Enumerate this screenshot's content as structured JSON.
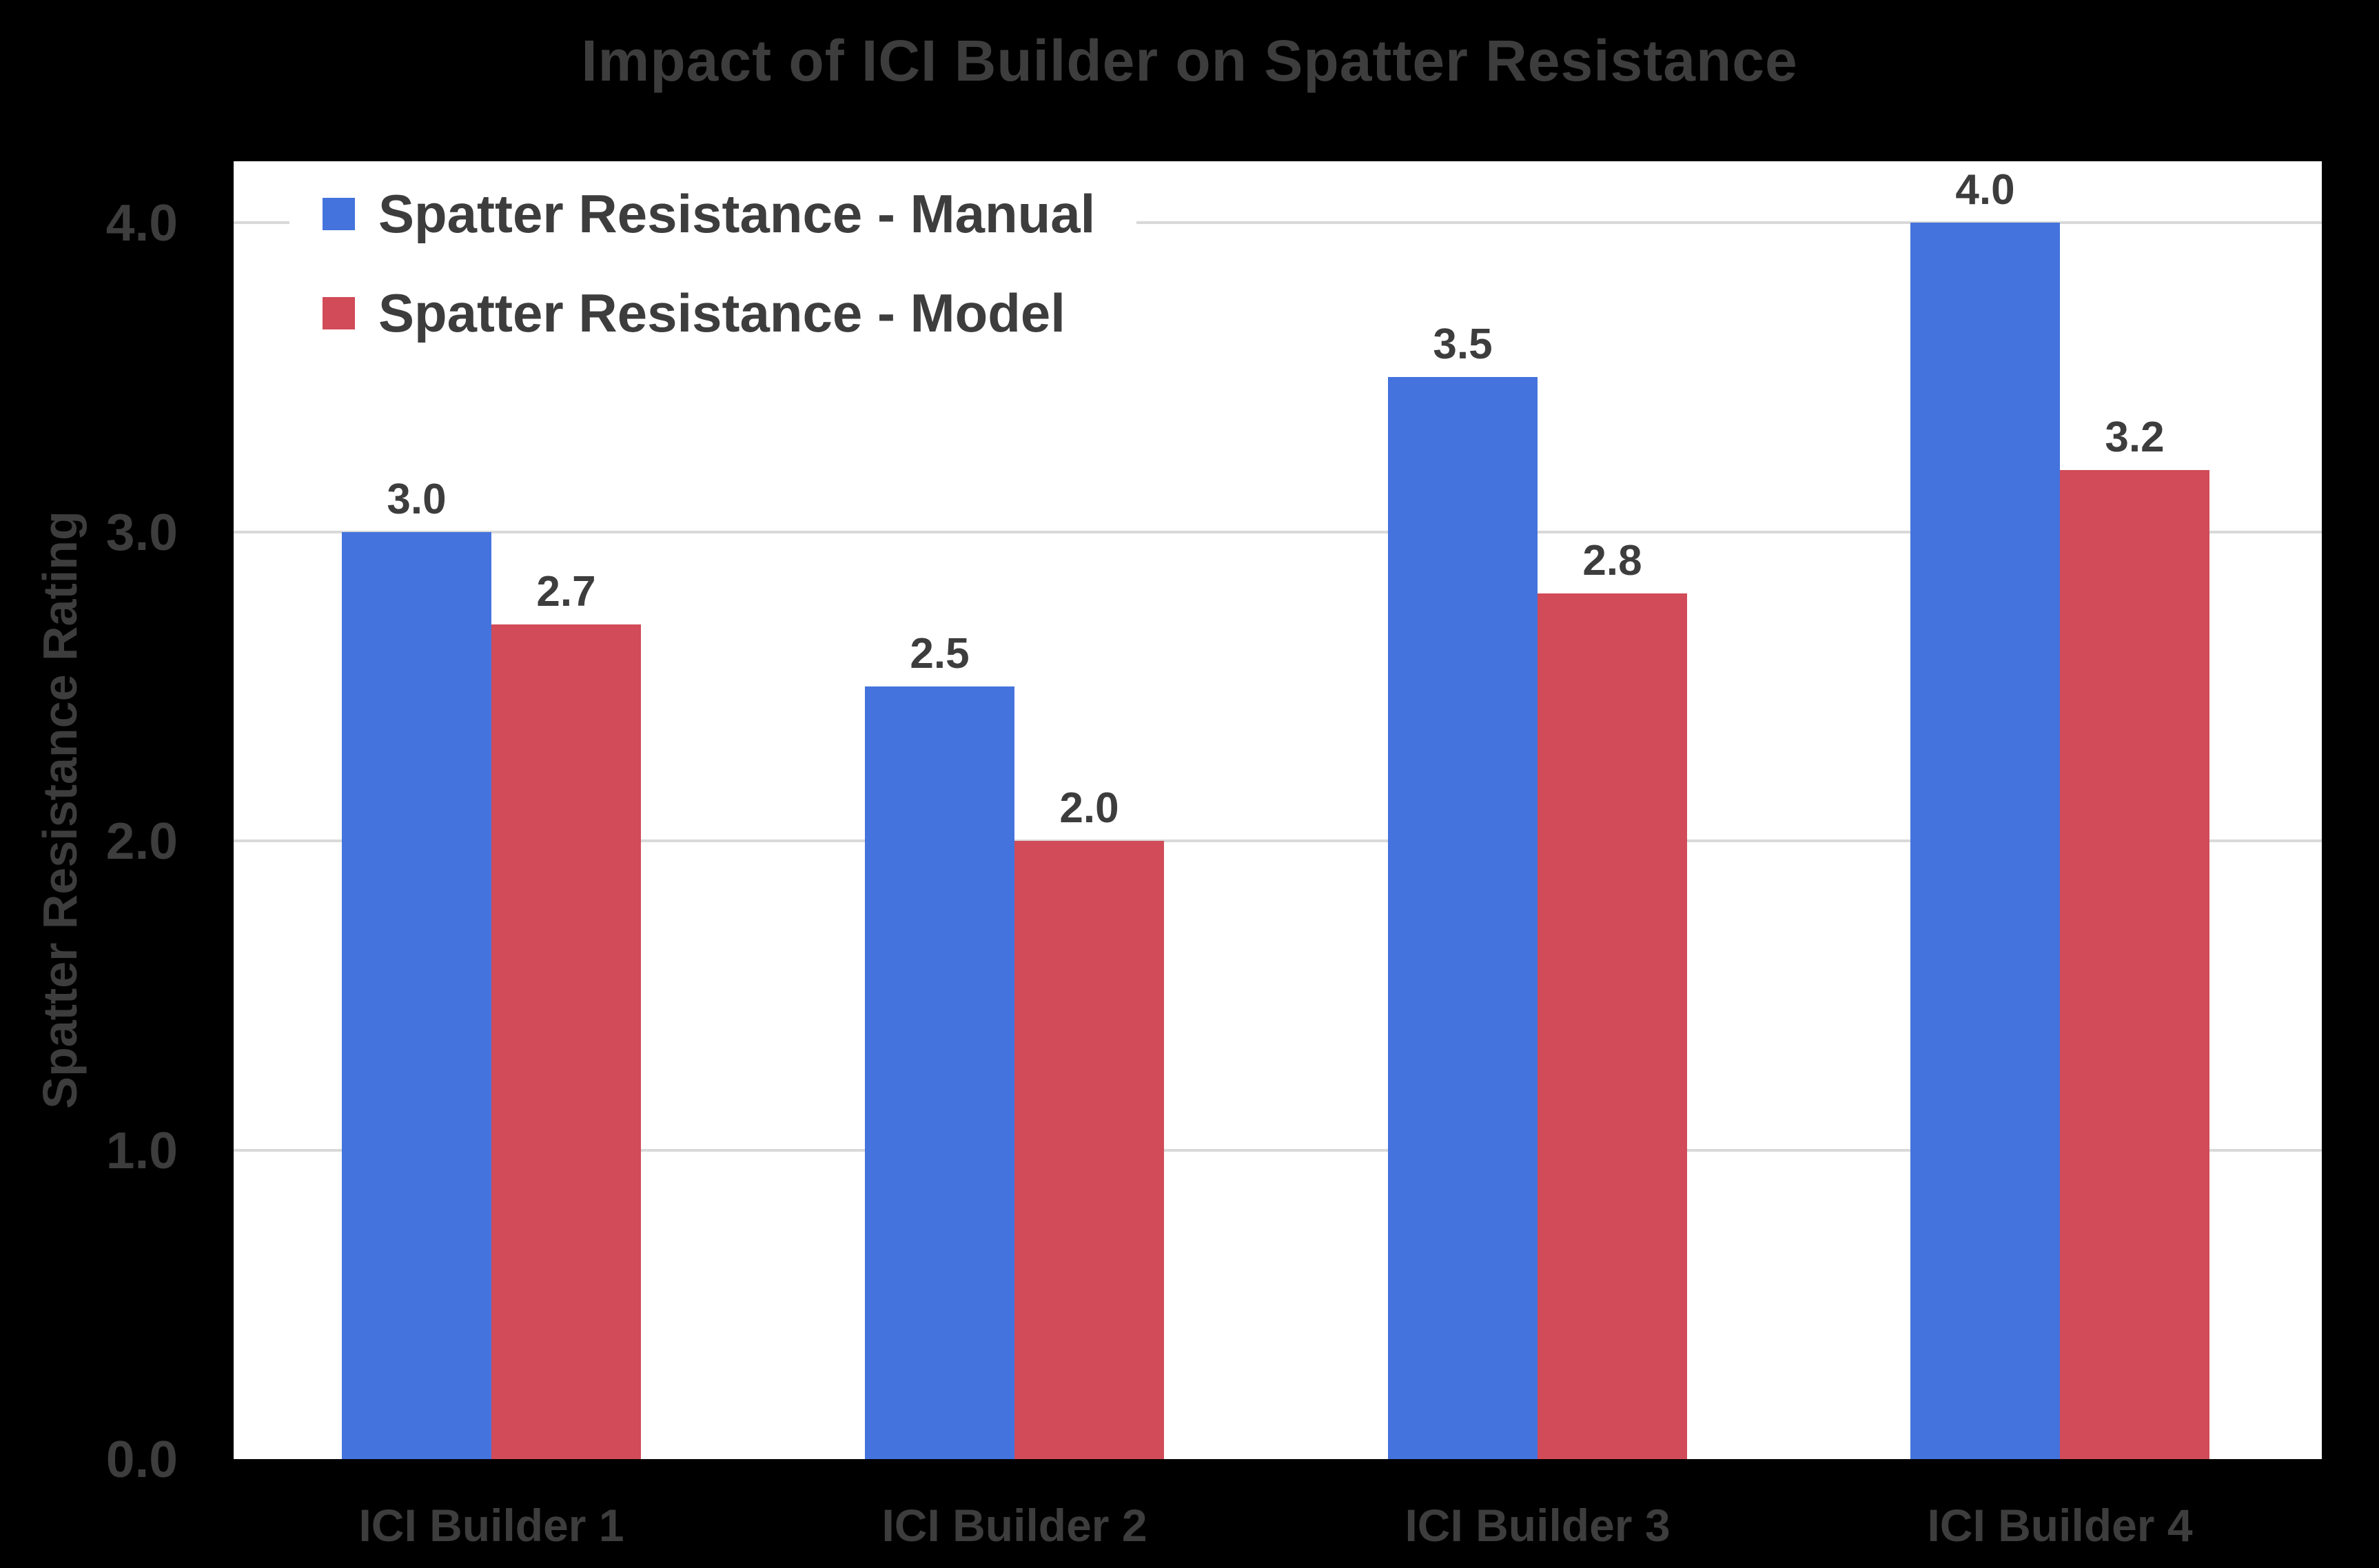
{
  "chart_data": {
    "type": "bar",
    "title": "Impact of ICI Builder on Spatter Resistance",
    "categories": [
      "ICI Builder 1",
      "ICI Builder 2",
      "ICI Builder 3",
      "ICI Builder 4"
    ],
    "series": [
      {
        "name": "Spatter Resistance - Manual",
        "color": "#4473DD",
        "values": [
          3.0,
          2.5,
          3.5,
          4.0
        ]
      },
      {
        "name": "Spatter Resistance - Model",
        "color": "#D14B58",
        "values": [
          2.7,
          2.0,
          2.8,
          3.2
        ]
      }
    ],
    "xlabel": "",
    "ylabel": "Spatter Resistance Rating",
    "ylim": [
      0.0,
      4.0
    ],
    "yticks": [
      0.0,
      1.0,
      2.0,
      3.0,
      4.0
    ],
    "ytick_labels": [
      "0.0",
      "1.0",
      "2.0",
      "3.0",
      "4.0"
    ],
    "grid": "horizontal gridlines at 1.0, 2.0, 3.0, 4.0",
    "legend_position": "top-left inside plot",
    "data_labels": "one decimal above each bar",
    "colors": {
      "page_bg": "#000000",
      "plot_bg": "#FFFFFF",
      "gridline": "#D9D9D9",
      "text": "#3D3D3D"
    }
  }
}
